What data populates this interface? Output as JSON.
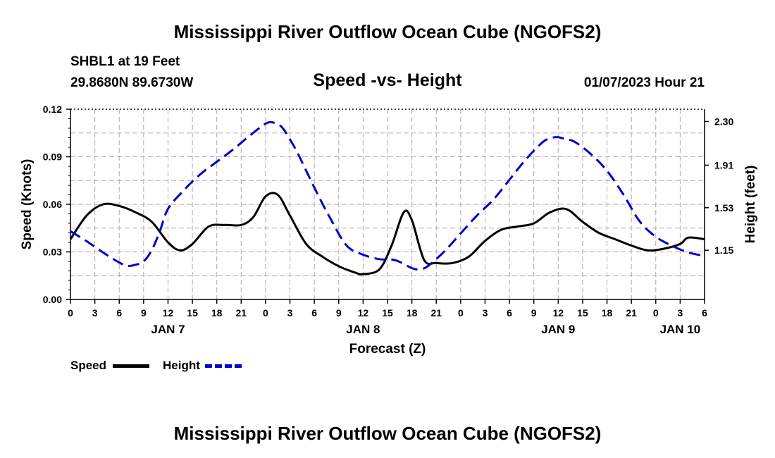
{
  "header": {
    "title": "Mississippi River Outflow Ocean Cube (NGOFS2)",
    "station": "SHBL1 at 19 Feet",
    "coords": "29.8680N  89.6730W",
    "subtitle": "Speed -vs- Height",
    "datetime": "01/07/2023 Hour 21"
  },
  "footer": {
    "title": "Mississippi River Outflow Ocean Cube (NGOFS2)"
  },
  "legend": {
    "speed_label": "Speed",
    "height_label": "Height"
  },
  "colors": {
    "speed": "#000000",
    "height": "#0000cc",
    "grid": "#aaaaaa"
  },
  "chart_data": {
    "type": "line",
    "title": "Speed -vs- Height",
    "xlabel": "Forecast (Z)",
    "ylabel": "Speed (Knots)",
    "y2label": "Height (feet)",
    "xlim": [
      0,
      78
    ],
    "ylim": [
      0,
      0.12
    ],
    "y2lim": [
      0.71,
      2.41
    ],
    "x_ticks": [
      0,
      3,
      6,
      9,
      12,
      15,
      18,
      21,
      24,
      27,
      30,
      33,
      36,
      39,
      42,
      45,
      48,
      51,
      54,
      57,
      60,
      63,
      66,
      69,
      72,
      75,
      78
    ],
    "x_tick_labels": [
      "0",
      "3",
      "6",
      "9",
      "12",
      "15",
      "18",
      "21",
      "0",
      "3",
      "6",
      "9",
      "12",
      "15",
      "18",
      "21",
      "0",
      "3",
      "6",
      "9",
      "12",
      "15",
      "18",
      "21",
      "0",
      "3",
      "6"
    ],
    "y_ticks": [
      0,
      0.03,
      0.06,
      0.09,
      0.12
    ],
    "y_tick_labels": [
      "0.00",
      "0.03",
      "0.06",
      "0.09",
      "0.12"
    ],
    "y2_ticks": [
      1.15,
      1.53,
      1.91,
      2.3
    ],
    "y2_tick_labels": [
      "1.15",
      "1.53",
      "1.91",
      "2.30"
    ],
    "day_labels": [
      {
        "x": 12,
        "label": "JAN 7"
      },
      {
        "x": 36,
        "label": "JAN 8"
      },
      {
        "x": 60,
        "label": "JAN 9"
      },
      {
        "x": 75,
        "label": "JAN 10"
      }
    ],
    "grid": true,
    "series": [
      {
        "name": "Speed",
        "axis": "left",
        "style": "solid",
        "x": [
          0,
          2,
          4,
          6,
          8,
          10,
          12,
          13.5,
          15,
          17,
          19,
          21,
          22.5,
          24,
          25.5,
          27,
          29,
          31,
          33,
          35,
          36,
          38,
          39.5,
          41,
          42,
          43.5,
          45,
          47,
          49,
          51,
          53,
          55,
          57,
          59,
          61,
          63,
          65,
          67,
          69,
          71,
          73,
          75,
          76,
          78
        ],
        "y": [
          0.038,
          0.053,
          0.06,
          0.059,
          0.055,
          0.049,
          0.036,
          0.031,
          0.035,
          0.046,
          0.047,
          0.047,
          0.052,
          0.065,
          0.066,
          0.053,
          0.035,
          0.027,
          0.021,
          0.017,
          0.016,
          0.019,
          0.034,
          0.055,
          0.05,
          0.025,
          0.023,
          0.023,
          0.027,
          0.037,
          0.044,
          0.046,
          0.048,
          0.055,
          0.057,
          0.049,
          0.042,
          0.038,
          0.034,
          0.031,
          0.032,
          0.035,
          0.039,
          0.038
        ]
      },
      {
        "name": "Height",
        "axis": "right",
        "style": "dashed",
        "x": [
          0,
          2,
          4,
          6,
          7,
          8,
          9,
          10,
          11,
          12,
          14,
          16,
          18,
          20,
          22,
          24,
          25,
          26,
          27,
          28,
          30,
          32,
          34,
          36,
          38,
          40,
          42,
          43,
          44,
          46,
          48,
          50,
          52,
          54,
          56,
          58,
          59,
          60,
          61,
          62,
          64,
          66,
          68,
          70,
          72,
          74,
          76,
          78
        ],
        "y": [
          1.32,
          1.23,
          1.13,
          1.04,
          1.01,
          1.02,
          1.05,
          1.15,
          1.32,
          1.52,
          1.69,
          1.83,
          1.94,
          2.05,
          2.17,
          2.28,
          2.29,
          2.25,
          2.14,
          2.01,
          1.71,
          1.43,
          1.19,
          1.11,
          1.07,
          1.06,
          0.99,
          0.98,
          1.01,
          1.14,
          1.3,
          1.46,
          1.6,
          1.78,
          1.96,
          2.11,
          2.15,
          2.16,
          2.14,
          2.12,
          2.01,
          1.86,
          1.65,
          1.41,
          1.27,
          1.19,
          1.13,
          1.1
        ]
      }
    ]
  }
}
